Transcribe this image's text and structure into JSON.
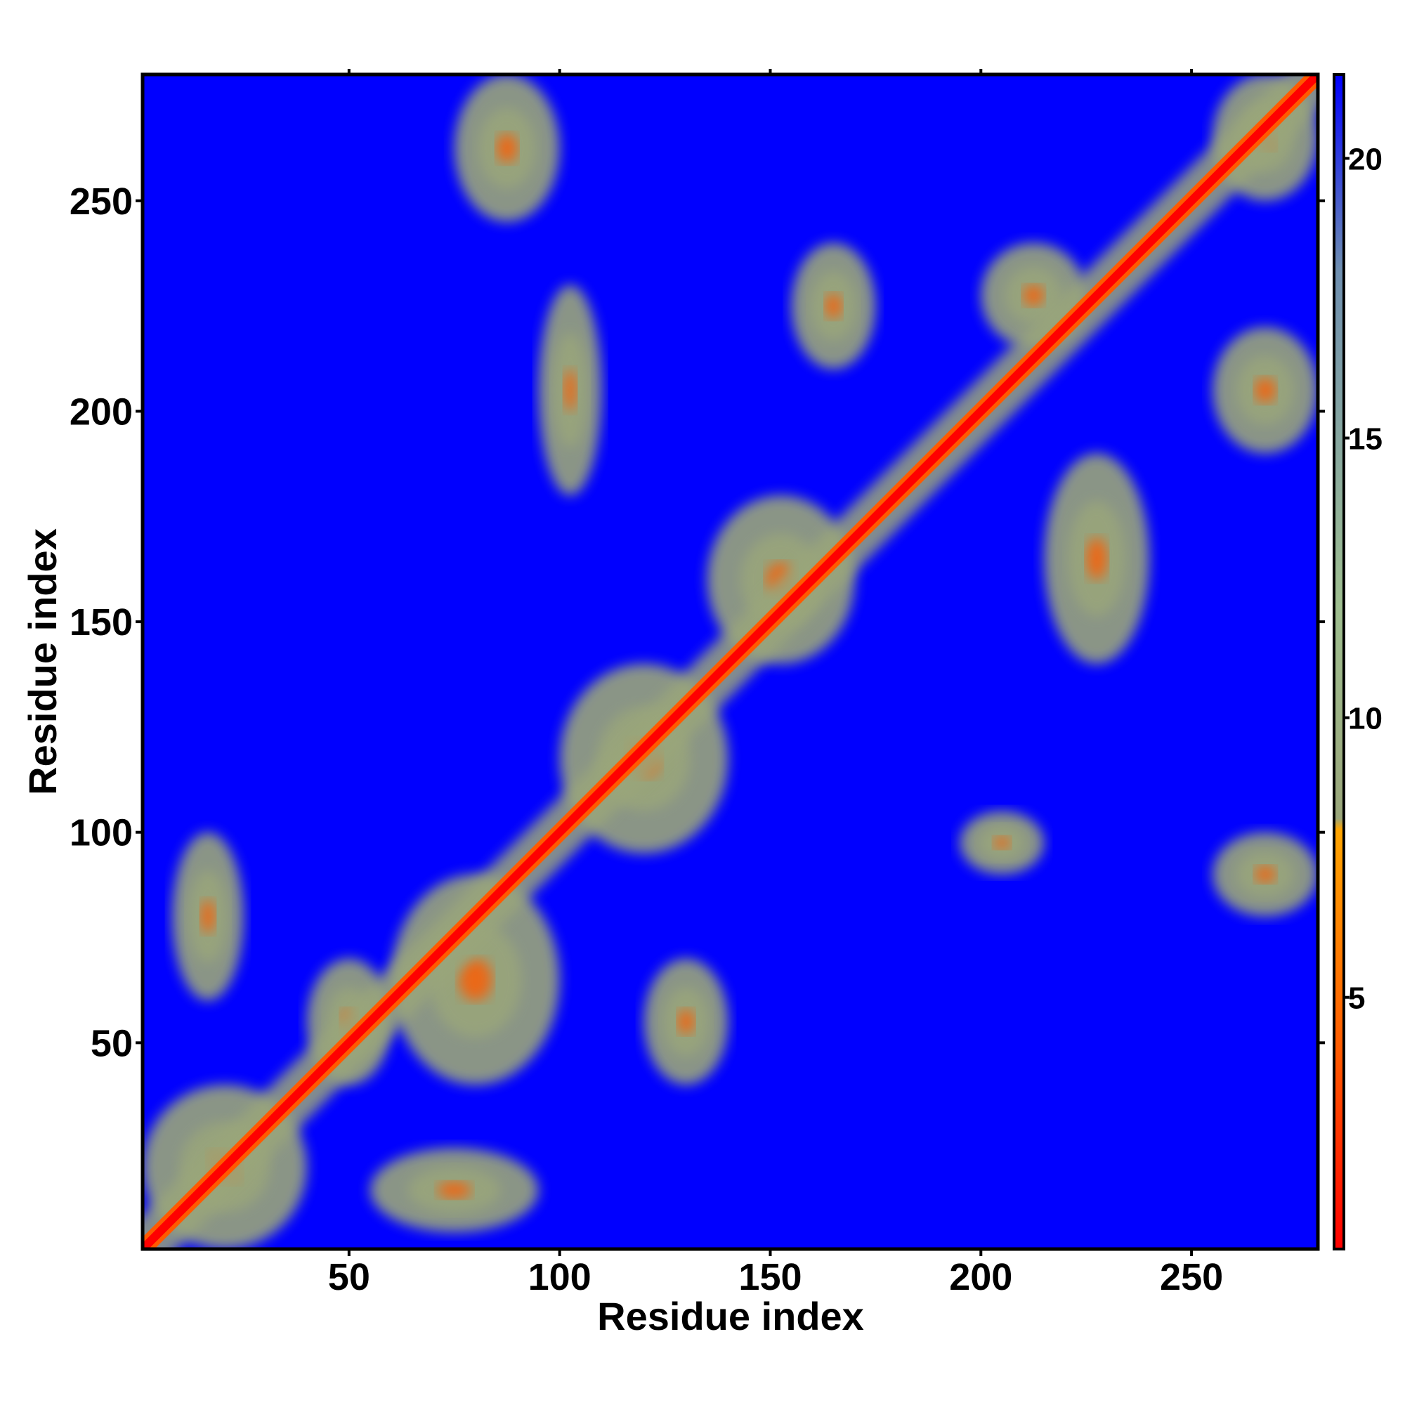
{
  "chart_data": {
    "type": "heatmap",
    "title": "",
    "xlabel": "Residue index",
    "ylabel": "Residue index",
    "xlim": [
      1,
      280
    ],
    "ylim": [
      1,
      280
    ],
    "x_ticks": [
      50,
      100,
      150,
      200,
      250
    ],
    "y_ticks": [
      50,
      100,
      150,
      200,
      250
    ],
    "colorbar": {
      "ticks": [
        5,
        10,
        15,
        20
      ],
      "range": [
        0.5,
        21.5
      ],
      "stops": [
        {
          "value": 0.5,
          "color": "#ff0000"
        },
        {
          "value": 4.0,
          "color": "#ff5a00"
        },
        {
          "value": 8.0,
          "color": "#ffa500"
        },
        {
          "value": 8.2,
          "color": "#9aa67a"
        },
        {
          "value": 12.0,
          "color": "#9fbf90"
        },
        {
          "value": 18.0,
          "color": "#6f8fb0"
        },
        {
          "value": 21.5,
          "color": "#0000ff"
        }
      ]
    },
    "background_color": "#0000ff",
    "diagonal": {
      "from": [
        1,
        1
      ],
      "to": [
        280,
        280
      ]
    },
    "contact_regions": [
      {
        "x": [
          1,
          40
        ],
        "y": [
          1,
          40
        ]
      },
      {
        "x": [
          8,
          25
        ],
        "y": [
          60,
          100
        ]
      },
      {
        "x": [
          40,
          60
        ],
        "y": [
          40,
          70
        ]
      },
      {
        "x": [
          55,
          95
        ],
        "y": [
          5,
          25
        ]
      },
      {
        "x": [
          60,
          100
        ],
        "y": [
          40,
          90
        ]
      },
      {
        "x": [
          75,
          100
        ],
        "y": [
          245,
          280
        ]
      },
      {
        "x": [
          100,
          140
        ],
        "y": [
          95,
          140
        ]
      },
      {
        "x": [
          120,
          140
        ],
        "y": [
          40,
          70
        ]
      },
      {
        "x": [
          135,
          170
        ],
        "y": [
          140,
          180
        ]
      },
      {
        "x": [
          95,
          110
        ],
        "y": [
          180,
          230
        ]
      },
      {
        "x": [
          155,
          175
        ],
        "y": [
          210,
          240
        ]
      },
      {
        "x": [
          195,
          215
        ],
        "y": [
          90,
          105
        ]
      },
      {
        "x": [
          200,
          225
        ],
        "y": [
          215,
          240
        ]
      },
      {
        "x": [
          215,
          240
        ],
        "y": [
          140,
          190
        ]
      },
      {
        "x": [
          255,
          280
        ],
        "y": [
          250,
          280
        ]
      },
      {
        "x": [
          255,
          280
        ],
        "y": [
          80,
          100
        ]
      },
      {
        "x": [
          255,
          280
        ],
        "y": [
          190,
          220
        ]
      }
    ]
  }
}
